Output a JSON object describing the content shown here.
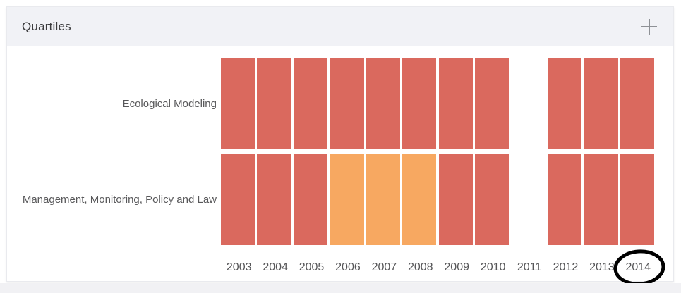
{
  "card": {
    "title": "Quartiles",
    "plus_button": "+"
  },
  "chart_data": {
    "type": "heatmap",
    "title": "Quartiles",
    "x": [
      "2003",
      "2004",
      "2005",
      "2006",
      "2007",
      "2008",
      "2009",
      "2010",
      "2011",
      "2012",
      "2013",
      "2014"
    ],
    "rows": [
      {
        "label": "Ecological Modeling",
        "values": [
          "Q1",
          "Q1",
          "Q1",
          "Q1",
          "Q1",
          "Q1",
          "Q1",
          "Q1",
          null,
          "Q1",
          "Q1",
          "Q1"
        ]
      },
      {
        "label": "Management, Monitoring, Policy and Law",
        "values": [
          "Q1",
          "Q1",
          "Q1",
          "Q2",
          "Q2",
          "Q2",
          "Q1",
          "Q1",
          null,
          "Q1",
          "Q1",
          "Q1"
        ]
      }
    ],
    "colors": {
      "Q1": "#da695e",
      "Q2": "#f7a861"
    },
    "missing_years": [
      "2011"
    ],
    "annotation": {
      "type": "hand-drawn-circle",
      "target_year": "2014",
      "color": "#000000"
    },
    "legend": "none",
    "grid": "white gaps between cells"
  }
}
